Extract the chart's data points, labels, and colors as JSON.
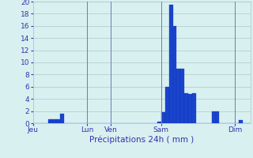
{
  "xlabel": "Précipitations 24h ( mm )",
  "ylabel": "",
  "background_color": "#d8f0f0",
  "bar_color": "#1a44cc",
  "bar_edge_color": "#0a30bb",
  "ylim": [
    0,
    20
  ],
  "yticks": [
    0,
    2,
    4,
    6,
    8,
    10,
    12,
    14,
    16,
    18,
    20
  ],
  "grid_color": "#aacccc",
  "tick_label_color": "#3333aa",
  "xlabel_color": "#3333aa",
  "n_bars": 56,
  "values": [
    0,
    0,
    0,
    0,
    0.6,
    0.7,
    0.7,
    1.5,
    0,
    0,
    0,
    0,
    0,
    0,
    0,
    0,
    0,
    0,
    0,
    0,
    0,
    0,
    0,
    0,
    0,
    0,
    0,
    0,
    0,
    0,
    0,
    0,
    0.3,
    1.8,
    6.0,
    19.5,
    16.0,
    9.0,
    9.0,
    5.0,
    4.8,
    5.0,
    0,
    0,
    0,
    0,
    2.0,
    2.0,
    0,
    0,
    0,
    0,
    0,
    0.5,
    0,
    0
  ],
  "day_labels": [
    "Jeu",
    "Lun",
    "Ven",
    "Sam",
    "Dim"
  ],
  "day_positions": [
    0,
    14,
    20,
    33,
    52
  ],
  "vline_positions": [
    14,
    20,
    33,
    52
  ],
  "vline_color": "#7777bb"
}
